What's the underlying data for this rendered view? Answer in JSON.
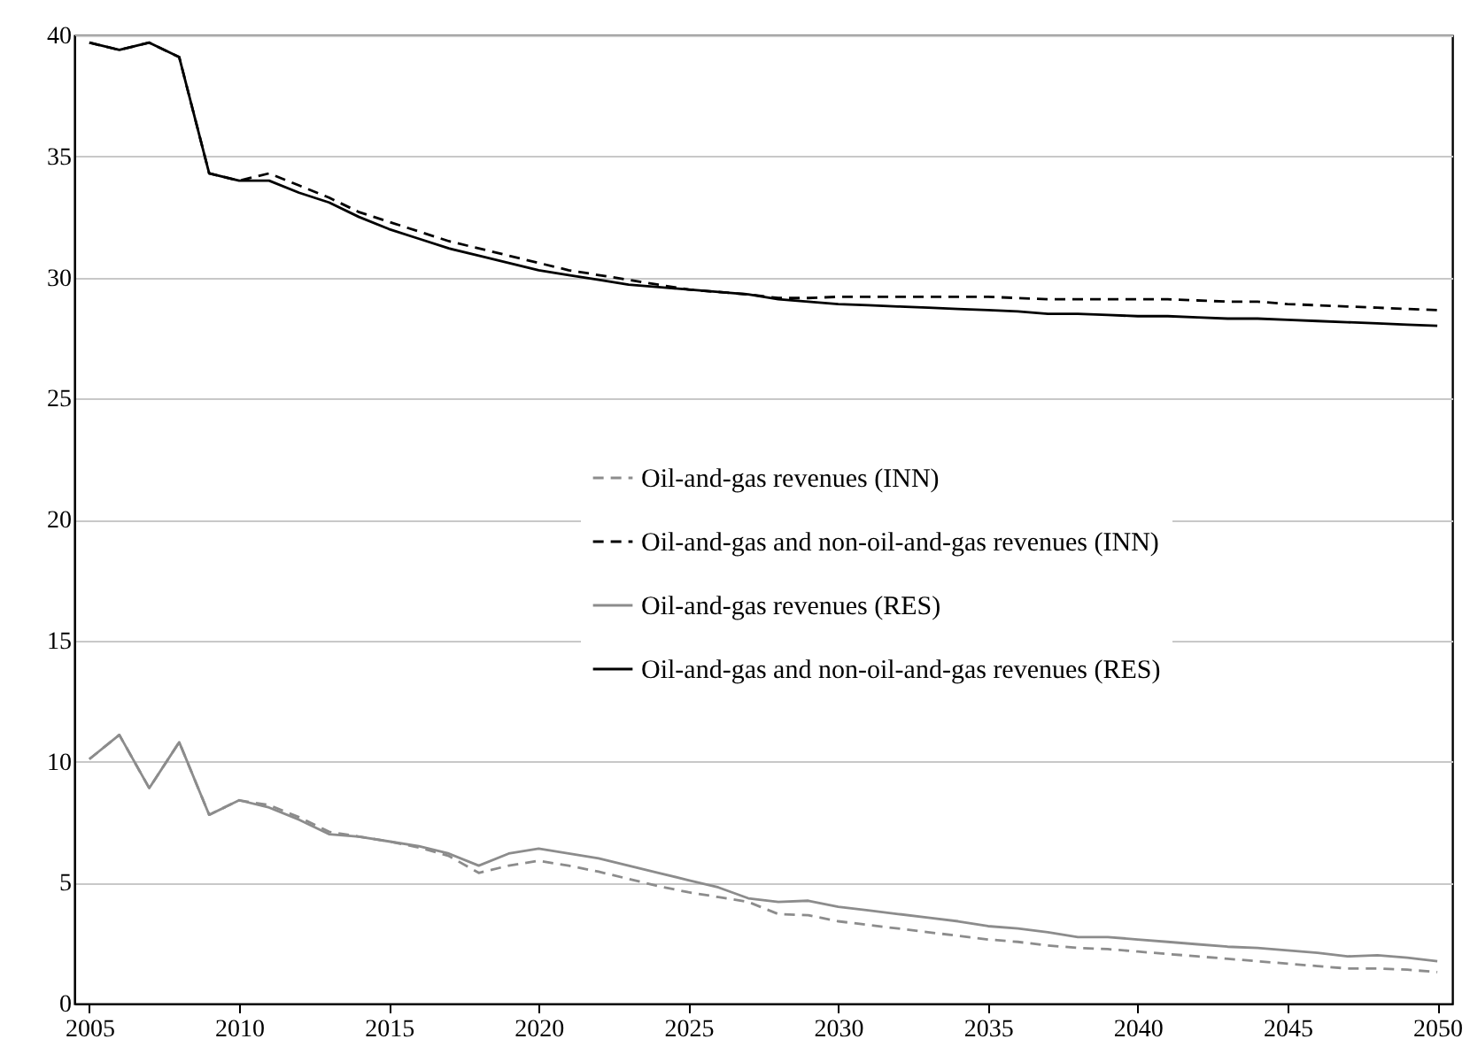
{
  "chart_data": {
    "type": "line",
    "x": [
      2005,
      2006,
      2007,
      2008,
      2009,
      2010,
      2011,
      2012,
      2013,
      2014,
      2015,
      2016,
      2017,
      2018,
      2019,
      2020,
      2021,
      2022,
      2023,
      2024,
      2025,
      2026,
      2027,
      2028,
      2029,
      2030,
      2031,
      2032,
      2033,
      2034,
      2035,
      2036,
      2037,
      2038,
      2039,
      2040,
      2041,
      2042,
      2043,
      2044,
      2045,
      2046,
      2047,
      2048,
      2049,
      2050
    ],
    "series": [
      {
        "name": "Oil-and-gas revenues (INN)",
        "color": "#8c8c8c",
        "line_style": "dashed",
        "values": [
          10.1,
          11.1,
          8.9,
          10.8,
          7.8,
          8.4,
          8.2,
          7.7,
          7.1,
          6.9,
          6.7,
          6.45,
          6.1,
          5.4,
          5.7,
          5.9,
          5.7,
          5.45,
          5.15,
          4.85,
          4.6,
          4.4,
          4.2,
          3.7,
          3.65,
          3.4,
          3.25,
          3.1,
          2.95,
          2.8,
          2.65,
          2.55,
          2.4,
          2.3,
          2.25,
          2.15,
          2.05,
          1.95,
          1.85,
          1.75,
          1.65,
          1.55,
          1.45,
          1.45,
          1.4,
          1.3
        ]
      },
      {
        "name": "Oil-and-gas and non-oil-and-gas revenues (INN)",
        "color": "#000000",
        "line_style": "dashed",
        "values": [
          39.7,
          39.4,
          39.7,
          39.1,
          34.3,
          34.0,
          34.3,
          33.8,
          33.3,
          32.7,
          32.3,
          31.9,
          31.5,
          31.2,
          30.9,
          30.6,
          30.3,
          30.1,
          29.9,
          29.7,
          29.5,
          29.4,
          29.3,
          29.15,
          29.15,
          29.2,
          29.2,
          29.2,
          29.2,
          29.2,
          29.2,
          29.15,
          29.1,
          29.1,
          29.1,
          29.1,
          29.1,
          29.05,
          29.0,
          29.0,
          28.9,
          28.85,
          28.8,
          28.75,
          28.7,
          28.65
        ]
      },
      {
        "name": "Oil-and-gas revenues (RES)",
        "color": "#8c8c8c",
        "line_style": "solid",
        "values": [
          10.1,
          11.1,
          8.9,
          10.8,
          7.8,
          8.4,
          8.1,
          7.6,
          7.0,
          6.9,
          6.7,
          6.5,
          6.2,
          5.7,
          6.2,
          6.4,
          6.2,
          6.0,
          5.7,
          5.4,
          5.1,
          4.8,
          4.35,
          4.2,
          4.25,
          4.0,
          3.85,
          3.7,
          3.55,
          3.4,
          3.2,
          3.1,
          2.95,
          2.75,
          2.75,
          2.65,
          2.55,
          2.45,
          2.35,
          2.3,
          2.2,
          2.1,
          1.95,
          2.0,
          1.9,
          1.75
        ]
      },
      {
        "name": "Oil-and-gas and non-oil-and-gas revenues (RES)",
        "color": "#000000",
        "line_style": "solid",
        "values": [
          39.7,
          39.4,
          39.7,
          39.1,
          34.3,
          34.0,
          34.0,
          33.5,
          33.1,
          32.5,
          32.0,
          31.6,
          31.2,
          30.9,
          30.6,
          30.3,
          30.1,
          29.9,
          29.7,
          29.6,
          29.5,
          29.4,
          29.3,
          29.1,
          29.0,
          28.9,
          28.85,
          28.8,
          28.75,
          28.7,
          28.65,
          28.6,
          28.5,
          28.5,
          28.45,
          28.4,
          28.4,
          28.35,
          28.3,
          28.3,
          28.25,
          28.2,
          28.15,
          28.1,
          28.05,
          28.0
        ]
      }
    ],
    "xlim": [
      2004.5,
      2050.5
    ],
    "xticks": [
      2005,
      2010,
      2015,
      2020,
      2025,
      2030,
      2035,
      2040,
      2045,
      2050
    ],
    "ylim": [
      0,
      40
    ],
    "yticks": [
      0,
      5,
      10,
      15,
      20,
      25,
      30,
      35,
      40
    ],
    "grid": "y",
    "legend": "center",
    "marker": "none"
  }
}
